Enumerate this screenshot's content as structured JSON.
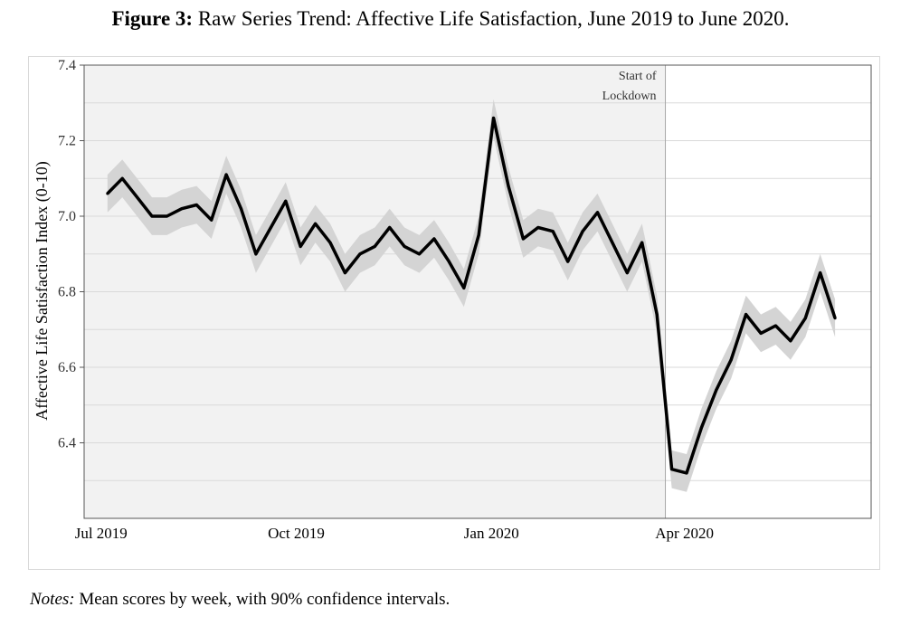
{
  "title": {
    "prefix": "Figure 3:",
    "text": "Raw Series Trend: Affective Life Satisfaction, June 2019 to June 2020."
  },
  "notes": {
    "prefix": "Notes:",
    "text": "Mean scores by week, with 90% confidence intervals."
  },
  "chart_data": {
    "type": "line",
    "ylabel": "Affective Life Satisfaction Index (0-10)",
    "ylim": [
      6.2,
      7.4
    ],
    "yticks": [
      "6.4",
      "6.6",
      "6.8",
      "7.0",
      "7.2",
      "7.4"
    ],
    "xlim": [
      "2019-06-23",
      "2020-06-28"
    ],
    "xticks": [
      {
        "label": "Jul 2019",
        "date": "2019-07-01"
      },
      {
        "label": "Oct 2019",
        "date": "2019-10-01"
      },
      {
        "label": "Jan 2020",
        "date": "2020-01-01"
      },
      {
        "label": "Apr 2020",
        "date": "2020-04-01"
      }
    ],
    "grid": true,
    "annotation": {
      "lines": [
        "Start of",
        "Lockdown"
      ],
      "date": "2020-03-23"
    },
    "shading": {
      "pre_lockdown": "#f2f2f2",
      "post_lockdown": "#ffffff"
    },
    "colors": {
      "line": "#000000",
      "ci_band": "#d4d4d4",
      "grid": "#d9d9d9",
      "lockdown_line": "#a8a8a8"
    },
    "series": [
      {
        "confidence_level": "90%",
        "x": [
          "2019-07-04",
          "2019-07-11",
          "2019-07-18",
          "2019-07-25",
          "2019-08-01",
          "2019-08-08",
          "2019-08-15",
          "2019-08-22",
          "2019-08-29",
          "2019-09-05",
          "2019-09-12",
          "2019-09-19",
          "2019-09-26",
          "2019-10-03",
          "2019-10-10",
          "2019-10-17",
          "2019-10-24",
          "2019-10-31",
          "2019-11-07",
          "2019-11-14",
          "2019-11-21",
          "2019-11-28",
          "2019-12-05",
          "2019-12-12",
          "2019-12-19",
          "2019-12-26",
          "2020-01-02",
          "2020-01-09",
          "2020-01-16",
          "2020-01-23",
          "2020-01-30",
          "2020-02-06",
          "2020-02-13",
          "2020-02-20",
          "2020-02-27",
          "2020-03-05",
          "2020-03-12",
          "2020-03-19",
          "2020-03-26",
          "2020-04-02",
          "2020-04-09",
          "2020-04-16",
          "2020-04-23",
          "2020-04-30",
          "2020-05-07",
          "2020-05-14",
          "2020-05-21",
          "2020-05-28",
          "2020-06-04",
          "2020-06-11"
        ],
        "y": [
          7.06,
          7.1,
          7.05,
          7.0,
          7.0,
          7.02,
          7.03,
          6.99,
          7.11,
          7.02,
          6.9,
          6.97,
          7.04,
          6.92,
          6.98,
          6.93,
          6.85,
          6.9,
          6.92,
          6.97,
          6.92,
          6.9,
          6.94,
          6.88,
          6.81,
          6.95,
          7.26,
          7.08,
          6.94,
          6.97,
          6.96,
          6.88,
          6.96,
          7.01,
          6.93,
          6.85,
          6.93,
          6.74,
          6.33,
          6.32,
          6.44,
          6.54,
          6.62,
          6.74,
          6.69,
          6.71,
          6.67,
          6.73,
          6.85,
          6.73
        ],
        "ci_lower": [
          7.01,
          7.05,
          7.0,
          6.95,
          6.95,
          6.97,
          6.98,
          6.94,
          7.06,
          6.97,
          6.85,
          6.92,
          6.99,
          6.87,
          6.93,
          6.88,
          6.8,
          6.85,
          6.87,
          6.92,
          6.87,
          6.85,
          6.89,
          6.83,
          6.76,
          6.9,
          7.21,
          7.03,
          6.89,
          6.92,
          6.91,
          6.83,
          6.91,
          6.96,
          6.88,
          6.8,
          6.88,
          6.69,
          6.28,
          6.27,
          6.39,
          6.49,
          6.57,
          6.69,
          6.64,
          6.66,
          6.62,
          6.68,
          6.8,
          6.68
        ],
        "ci_upper": [
          7.11,
          7.15,
          7.1,
          7.05,
          7.05,
          7.07,
          7.08,
          7.04,
          7.16,
          7.07,
          6.95,
          7.02,
          7.09,
          6.97,
          7.03,
          6.98,
          6.9,
          6.95,
          6.97,
          7.02,
          6.97,
          6.95,
          6.99,
          6.93,
          6.86,
          7.0,
          7.31,
          7.13,
          6.99,
          7.02,
          7.01,
          6.93,
          7.01,
          7.06,
          6.98,
          6.9,
          6.98,
          6.79,
          6.38,
          6.37,
          6.49,
          6.59,
          6.67,
          6.79,
          6.74,
          6.76,
          6.72,
          6.78,
          6.9,
          6.78
        ]
      }
    ]
  }
}
